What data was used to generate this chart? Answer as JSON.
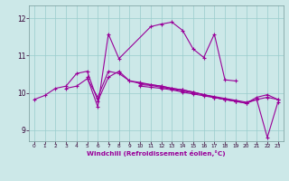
{
  "background_color": "#cce8e8",
  "line_color": "#990099",
  "grid_color": "#99cccc",
  "xlabel": "Windchill (Refroidissement éolien,°C)",
  "xlim": [
    -0.5,
    23.5
  ],
  "ylim": [
    8.7,
    12.35
  ],
  "yticks": [
    9,
    10,
    11,
    12
  ],
  "xticks": [
    0,
    1,
    2,
    3,
    4,
    5,
    6,
    7,
    8,
    9,
    10,
    11,
    12,
    13,
    14,
    15,
    16,
    17,
    18,
    19,
    20,
    21,
    22,
    23
  ],
  "line1_x": [
    0,
    1,
    2,
    3,
    4,
    5,
    6,
    7,
    8,
    9,
    10,
    11,
    12,
    13,
    14,
    15,
    16,
    17,
    18,
    19,
    20,
    21,
    22,
    23
  ],
  "line1_y": [
    9.82,
    9.93,
    10.12,
    10.18,
    10.52,
    10.58,
    9.78,
    10.42,
    10.58,
    10.32,
    10.25,
    10.22,
    10.18,
    10.12,
    10.08,
    10.02,
    9.95,
    9.88,
    9.82,
    9.78,
    9.72,
    9.88,
    9.95,
    9.82
  ],
  "line2_x": [
    5,
    6,
    7,
    8,
    11,
    12,
    13,
    14,
    15,
    16,
    17,
    18,
    19
  ],
  "line2_y": [
    10.42,
    9.62,
    11.58,
    10.92,
    11.78,
    11.85,
    11.9,
    11.68,
    11.18,
    10.95,
    11.58,
    10.35,
    10.32
  ],
  "line3_x": [
    3,
    4,
    5,
    6,
    7,
    8,
    9,
    10,
    11,
    12,
    13,
    14,
    15,
    16,
    17,
    18,
    19
  ],
  "line3_y": [
    10.12,
    10.18,
    10.38,
    9.88,
    10.58,
    10.52,
    10.32,
    10.28,
    10.22,
    10.18,
    10.12,
    10.08,
    10.02,
    9.95,
    9.88,
    9.82,
    9.78
  ],
  "line4_x": [
    10,
    11,
    12,
    13,
    14,
    15,
    16,
    17,
    18,
    19,
    20,
    21,
    22,
    23
  ],
  "line4_y": [
    10.18,
    10.15,
    10.12,
    10.08,
    10.02,
    9.97,
    9.92,
    9.87,
    9.82,
    9.77,
    9.72,
    9.82,
    8.8,
    9.75
  ],
  "line5_x": [
    10,
    11,
    12,
    13,
    14,
    15,
    16,
    17,
    18,
    19,
    20,
    21,
    22,
    23
  ],
  "line5_y": [
    10.22,
    10.2,
    10.15,
    10.1,
    10.05,
    10.0,
    9.95,
    9.9,
    9.85,
    9.8,
    9.75,
    9.82,
    9.88,
    9.82
  ]
}
